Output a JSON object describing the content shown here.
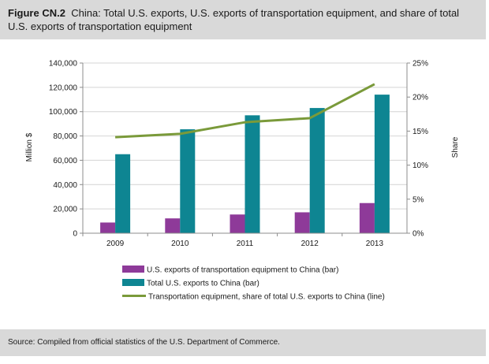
{
  "figure": {
    "label": "Figure CN.2",
    "title": "China: Total U.S. exports, U.S. exports of transportation equipment, and share of total U.S. exports of transportation equipment",
    "source": "Source: Compiled from official statistics of the U.S. Department of Commerce."
  },
  "chart_data": {
    "type": "bar",
    "categories": [
      "2009",
      "2010",
      "2011",
      "2012",
      "2013"
    ],
    "series": [
      {
        "name": "U.S. exports of transportation equipment to China (bar)",
        "kind": "bar",
        "axis": "left",
        "color": "#8e3a99",
        "values": [
          8800,
          12200,
          15400,
          17200,
          24800
        ]
      },
      {
        "name": "Total U.S. exports to China (bar)",
        "kind": "bar",
        "axis": "left",
        "color": "#0e8592",
        "values": [
          65000,
          85500,
          97000,
          103000,
          114000
        ]
      },
      {
        "name": "Transportation equipment, share of total U.S. exports to China (line)",
        "kind": "line",
        "axis": "right",
        "color": "#7a9a3a",
        "values": [
          14.1,
          14.6,
          16.3,
          16.9,
          21.9
        ]
      }
    ],
    "ylabel": "Million $",
    "y2label": "Share",
    "ylim": [
      0,
      140000
    ],
    "yticks": [
      0,
      20000,
      40000,
      60000,
      80000,
      100000,
      120000,
      140000
    ],
    "ytick_labels": [
      "0",
      "20,000",
      "40,000",
      "60,000",
      "80,000",
      "100,000",
      "120,000",
      "140,000"
    ],
    "y2lim": [
      0,
      25
    ],
    "y2ticks": [
      0,
      5,
      10,
      15,
      20,
      25
    ],
    "y2tick_labels": [
      "0%",
      "5%",
      "10%",
      "15%",
      "20%",
      "25%"
    ],
    "grid": true,
    "legend_position": "bottom"
  }
}
